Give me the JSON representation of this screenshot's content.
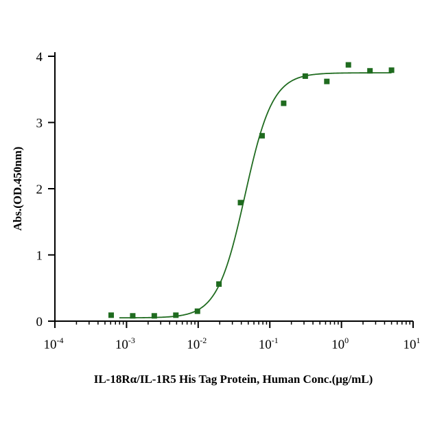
{
  "chart_data": {
    "type": "scatter",
    "title": "",
    "xlabel": "IL-18Rα/IL-1R5 His Tag Protein, Human Conc.(μg/mL)",
    "ylabel": "Abs.(OD.450nm)",
    "xscale": "log",
    "xlim": [
      0.0001,
      10
    ],
    "ylim": [
      0,
      4
    ],
    "x_ticks": [
      {
        "base": "10",
        "exp": "-4"
      },
      {
        "base": "10",
        "exp": "-3"
      },
      {
        "base": "10",
        "exp": "-2"
      },
      {
        "base": "10",
        "exp": "-1"
      },
      {
        "base": "10",
        "exp": "0"
      },
      {
        "base": "10",
        "exp": "1"
      }
    ],
    "y_ticks": [
      "0",
      "1",
      "2",
      "3",
      "4"
    ],
    "grid": false,
    "legend": "none",
    "color": "#1f6b1f",
    "series": [
      {
        "x": [
          0.00061,
          0.00122,
          0.00244,
          0.00488,
          0.00977,
          0.0195,
          0.039,
          0.078,
          0.156,
          0.3125,
          0.625,
          1.25,
          2.5,
          5
        ],
        "y": [
          0.09,
          0.08,
          0.08,
          0.09,
          0.15,
          0.56,
          1.79,
          2.8,
          3.29,
          3.7,
          3.62,
          3.87,
          3.78,
          3.79
        ]
      }
    ]
  }
}
